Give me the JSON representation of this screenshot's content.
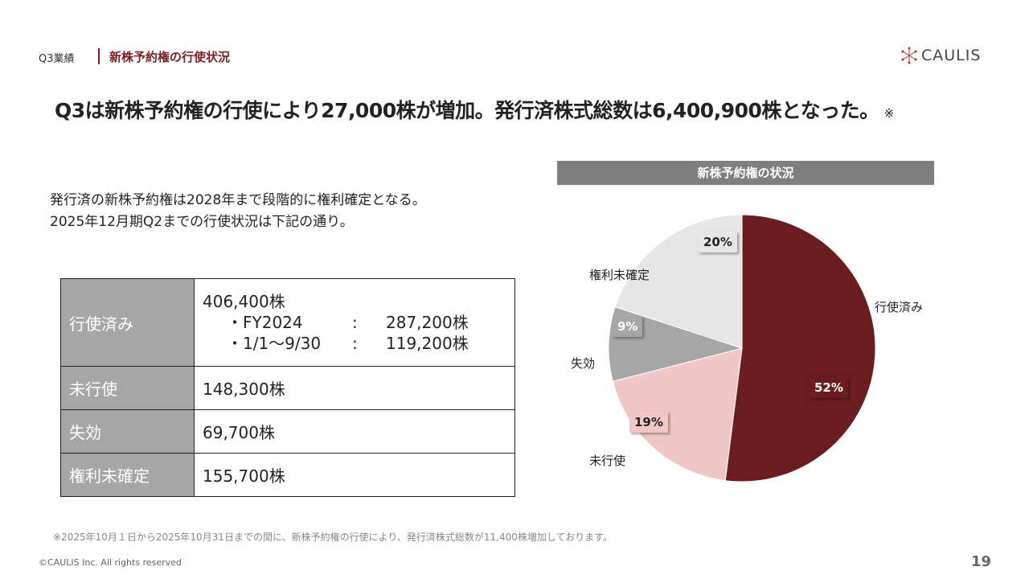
{
  "header": {
    "section": "Q3業績",
    "title": "新株予約権の行使状況",
    "logo": "CAULIS"
  },
  "headline": {
    "text": "Q3は新株予約権の行使により27,000株が増加。発行済株式総数は6,400,900株となった。",
    "note": "※"
  },
  "intro": [
    "発行済の新株予約権は2028年まで段階的に権利確定となる。",
    "2025年12月期Q2までの行使状況は下記の通り。"
  ],
  "table": {
    "rows": [
      {
        "label": "行使済み",
        "value": "406,400株",
        "details": [
          {
            "period": "・FY2024",
            "sep": ":",
            "value": "287,200株"
          },
          {
            "period": "・1/1〜9/30",
            "sep": ":",
            "value": "119,200株"
          }
        ]
      },
      {
        "label": "未行使",
        "value": "148,300株"
      },
      {
        "label": "失効",
        "value": "69,700株"
      },
      {
        "label": "権利未確定",
        "value": "155,700株"
      }
    ]
  },
  "chart_data": {
    "type": "pie",
    "title": "新株予約権の状況",
    "categories": [
      "行使済み",
      "未行使",
      "失効",
      "権利未確定"
    ],
    "values": [
      52,
      19,
      9,
      20
    ],
    "labels": [
      "52%",
      "19%",
      "9%",
      "20%"
    ],
    "colors": [
      "#6b1c1f",
      "#f0c6c6",
      "#a6a6a6",
      "#e6e6e6"
    ]
  },
  "footnote": "※2025年10月１日から2025年10月31日までの間に、新株予約権の行使により、発行済株式総数が11,400株増加しております。",
  "footer": {
    "copyright": "©CAULIS Inc. All rights reserved",
    "page": "19"
  }
}
